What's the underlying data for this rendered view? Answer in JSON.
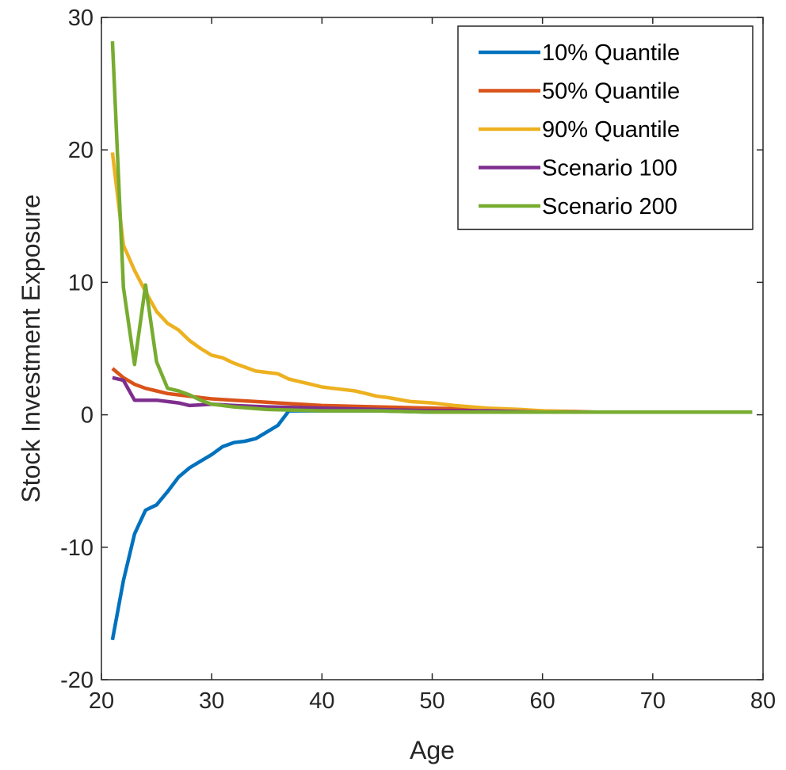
{
  "chart_data": {
    "type": "line",
    "title": "",
    "xlabel": "Age",
    "ylabel": "Stock Investment Exposure",
    "xlim": [
      20,
      80
    ],
    "ylim": [
      -20,
      30
    ],
    "xticks": [
      "20",
      "30",
      "40",
      "50",
      "60",
      "70",
      "80"
    ],
    "yticks": [
      "-20",
      "-10",
      "0",
      "10",
      "20",
      "30"
    ],
    "grid": false,
    "legend_position": "top-right",
    "series": [
      {
        "name": "10% Quantile",
        "color": "#0072BD",
        "x": [
          21,
          22,
          23,
          24,
          25,
          26,
          27,
          28,
          29,
          30,
          31,
          32,
          33,
          34,
          35,
          36,
          37,
          38,
          40,
          45,
          50,
          55,
          60,
          65,
          70,
          75,
          79
        ],
        "y": [
          -17,
          -12.5,
          -9,
          -7.2,
          -6.8,
          -5.8,
          -4.7,
          -4.0,
          -3.5,
          -3.0,
          -2.4,
          -2.1,
          -2.0,
          -1.8,
          -1.3,
          -0.8,
          0.3,
          0.3,
          0.3,
          0.3,
          0.2,
          0.2,
          0.2,
          0.2,
          0.2,
          0.2,
          0.2
        ]
      },
      {
        "name": "50% Quantile",
        "color": "#D95319",
        "x": [
          21,
          22,
          23,
          24,
          25,
          26,
          27,
          28,
          29,
          30,
          32,
          34,
          36,
          38,
          40,
          45,
          50,
          55,
          60,
          65,
          70,
          79
        ],
        "y": [
          3.5,
          2.8,
          2.3,
          2.0,
          1.8,
          1.6,
          1.5,
          1.4,
          1.3,
          1.2,
          1.1,
          1.0,
          0.9,
          0.8,
          0.7,
          0.6,
          0.5,
          0.4,
          0.3,
          0.2,
          0.2,
          0.2
        ]
      },
      {
        "name": "90% Quantile",
        "color": "#EDB120",
        "x": [
          21,
          22,
          23,
          24,
          25,
          26,
          27,
          28,
          29,
          30,
          31,
          32,
          33,
          34,
          35,
          36,
          37,
          38,
          39,
          40,
          41,
          42,
          43,
          44,
          45,
          46,
          48,
          50,
          52,
          55,
          58,
          60,
          63,
          65,
          70,
          79
        ],
        "y": [
          19.8,
          12.8,
          10.9,
          9.3,
          7.8,
          6.9,
          6.4,
          5.6,
          5.0,
          4.5,
          4.3,
          3.9,
          3.6,
          3.3,
          3.2,
          3.1,
          2.7,
          2.5,
          2.3,
          2.1,
          2.0,
          1.9,
          1.8,
          1.6,
          1.4,
          1.3,
          1.0,
          0.9,
          0.7,
          0.5,
          0.4,
          0.3,
          0.2,
          0.2,
          0.2,
          0.2
        ]
      },
      {
        "name": "Scenario 100",
        "color": "#7E2F8E",
        "x": [
          21,
          22,
          23,
          24,
          25,
          26,
          27,
          28,
          30,
          32,
          35,
          40,
          45,
          50,
          55,
          60,
          65,
          70,
          79
        ],
        "y": [
          2.8,
          2.6,
          1.1,
          1.1,
          1.1,
          1.0,
          0.9,
          0.7,
          0.8,
          0.7,
          0.6,
          0.5,
          0.4,
          0.3,
          0.3,
          0.2,
          0.2,
          0.2,
          0.2
        ]
      },
      {
        "name": "Scenario 200",
        "color": "#77AC30",
        "x": [
          21,
          22,
          23,
          24,
          25,
          26,
          27,
          28,
          29,
          30,
          32,
          35,
          40,
          45,
          50,
          55,
          60,
          65,
          70,
          79
        ],
        "y": [
          28.2,
          9.6,
          3.8,
          9.8,
          4.0,
          2.0,
          1.8,
          1.5,
          1.1,
          0.8,
          0.6,
          0.4,
          0.3,
          0.3,
          0.2,
          0.2,
          0.2,
          0.2,
          0.2,
          0.2
        ]
      }
    ]
  }
}
